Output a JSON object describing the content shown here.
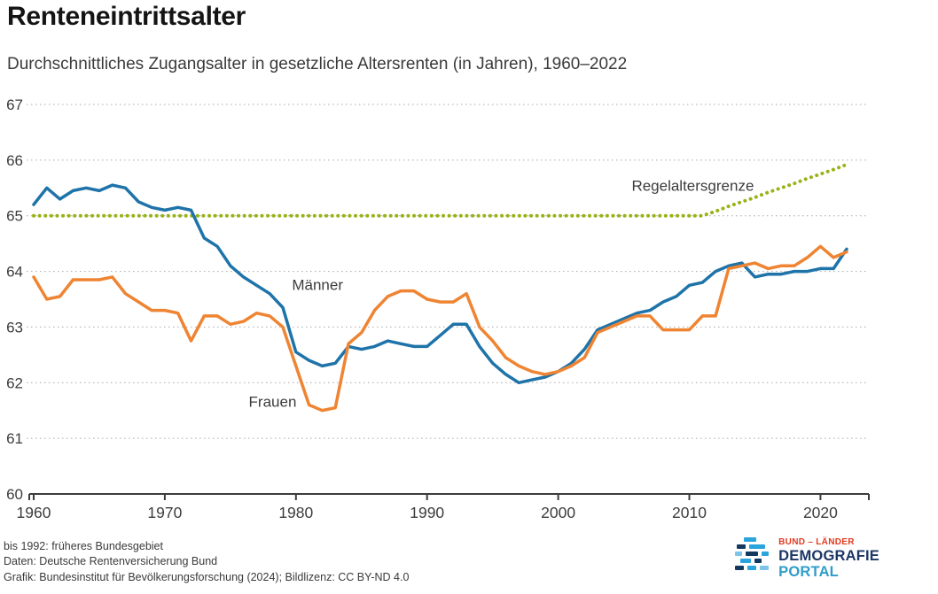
{
  "page": {
    "title": "Renteneintrittsalter",
    "subtitle": "Durchschnittliches Zugangsalter in gesetzliche Altersrenten (in Jahren), 1960–2022"
  },
  "footer": {
    "notes": [
      "bis 1992: früheres Bundesgebiet",
      "Daten: Deutsche Rentenversicherung Bund",
      "Grafik: Bundesinstitut für Bevölkerungsforschung (2024); Bildlizenz: CC BY-ND 4.0"
    ],
    "logo": {
      "line1": "BUND – LÄNDER",
      "line2": "DEMOGRAFIE",
      "line3": "PORTAL"
    }
  },
  "chart_data": {
    "type": "line",
    "title": "Renteneintrittsalter",
    "subtitle": "Durchschnittliches Zugangsalter in gesetzliche Altersrenten (in Jahren), 1960–2022",
    "xlabel": "",
    "ylabel": "",
    "xlim": [
      1960,
      2022
    ],
    "ylim": [
      60,
      67
    ],
    "xticks": [
      1960,
      1970,
      1980,
      1990,
      2000,
      2010,
      2020
    ],
    "yticks": [
      60,
      61,
      62,
      63,
      64,
      65,
      66,
      67
    ],
    "grid": "horizontal-dotted",
    "legend": "inline-labels",
    "colors": {
      "maenner": "#1e73a9",
      "frauen": "#ef8432",
      "regelaltersgrenze": "#97b317",
      "grid": "#a9a9a9",
      "axis": "#3c3c3c"
    },
    "series": [
      {
        "id": "regelaltersgrenze",
        "name": "Regelaltersgrenze",
        "color": "#97b317",
        "dotted": true,
        "values": [
          65.0,
          65.0,
          65.0,
          65.0,
          65.0,
          65.0,
          65.0,
          65.0,
          65.0,
          65.0,
          65.0,
          65.0,
          65.0,
          65.0,
          65.0,
          65.0,
          65.0,
          65.0,
          65.0,
          65.0,
          65.0,
          65.0,
          65.0,
          65.0,
          65.0,
          65.0,
          65.0,
          65.0,
          65.0,
          65.0,
          65.0,
          65.0,
          65.0,
          65.0,
          65.0,
          65.0,
          65.0,
          65.0,
          65.0,
          65.0,
          65.0,
          65.0,
          65.0,
          65.0,
          65.0,
          65.0,
          65.0,
          65.0,
          65.0,
          65.0,
          65.0,
          65.0,
          65.08,
          65.17,
          65.25,
          65.33,
          65.42,
          65.5,
          65.58,
          65.67,
          65.75,
          65.83,
          65.92
        ]
      },
      {
        "id": "maenner",
        "name": "Männer",
        "color": "#1e73a9",
        "dotted": false,
        "values": [
          65.2,
          65.5,
          65.3,
          65.45,
          65.5,
          65.45,
          65.55,
          65.5,
          65.25,
          65.15,
          65.1,
          65.15,
          65.1,
          64.6,
          64.45,
          64.1,
          63.9,
          63.75,
          63.6,
          63.35,
          62.55,
          62.4,
          62.3,
          62.35,
          62.65,
          62.6,
          62.65,
          62.75,
          62.7,
          62.65,
          62.65,
          62.85,
          63.05,
          63.05,
          62.65,
          62.35,
          62.15,
          62.0,
          62.05,
          62.1,
          62.2,
          62.35,
          62.6,
          62.95,
          63.05,
          63.15,
          63.25,
          63.3,
          63.45,
          63.55,
          63.75,
          63.8,
          64.0,
          64.1,
          64.15,
          63.9,
          63.95,
          63.95,
          64.0,
          64.0,
          64.05,
          64.05,
          64.4
        ]
      },
      {
        "id": "frauen",
        "name": "Frauen",
        "color": "#ef8432",
        "dotted": false,
        "values": [
          63.9,
          63.5,
          63.55,
          63.85,
          63.85,
          63.85,
          63.9,
          63.6,
          63.45,
          63.3,
          63.3,
          63.25,
          62.75,
          63.2,
          63.2,
          63.05,
          63.1,
          63.25,
          63.2,
          63.0,
          62.3,
          61.6,
          61.5,
          61.55,
          62.7,
          62.9,
          63.3,
          63.55,
          63.65,
          63.65,
          63.5,
          63.45,
          63.45,
          63.6,
          63.0,
          62.75,
          62.45,
          62.3,
          62.2,
          62.15,
          62.2,
          62.3,
          62.45,
          62.9,
          63.0,
          63.1,
          63.2,
          63.2,
          62.95,
          62.95,
          62.95,
          63.2,
          63.2,
          64.05,
          64.1,
          64.15,
          64.05,
          64.1,
          64.1,
          64.25,
          64.45,
          64.25,
          64.35
        ]
      }
    ],
    "annotations": [
      {
        "text": "Männer",
        "year": 1979.7,
        "value": 63.67,
        "anchor": "start"
      },
      {
        "text": "Frauen",
        "year": 1976.4,
        "value": 61.57,
        "anchor": "start"
      },
      {
        "text": "Regelaltersgrenze",
        "year": 2005.6,
        "value": 65.45,
        "anchor": "start"
      }
    ]
  }
}
